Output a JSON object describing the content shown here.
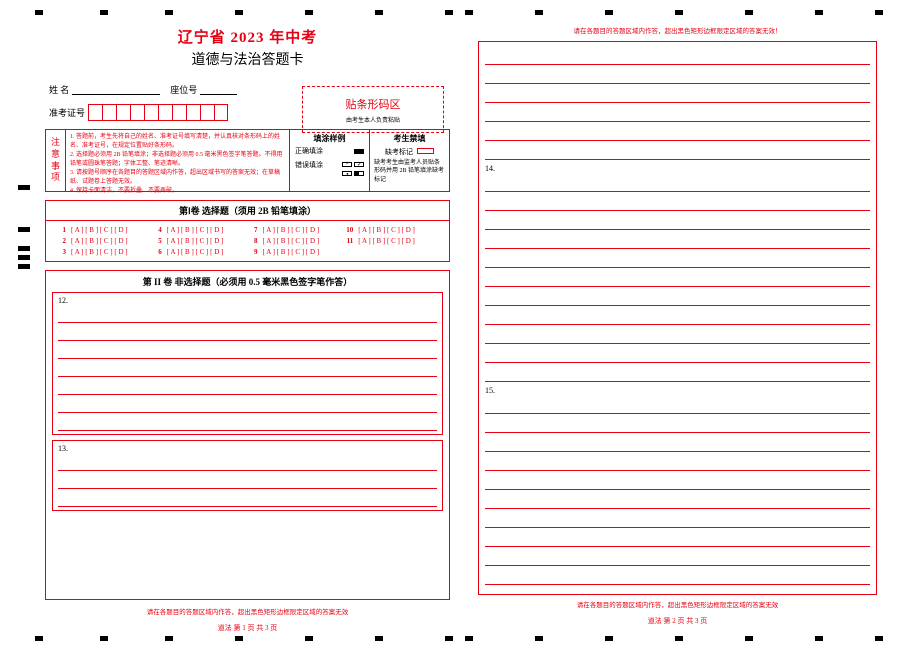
{
  "title_main": "辽宁省 2023 年中考",
  "title_sub": "道德与法治答题卡",
  "name_label": "姓    名",
  "seat_label": "座位号",
  "id_label": "准考证号",
  "barcode_title": "贴条形码区",
  "barcode_note": "由考生本人负责粘贴",
  "notice_label": [
    "注",
    "意",
    "事",
    "项"
  ],
  "notice_lines": [
    "1. 答题前，考生先将自己的姓名、准考证号填写清楚，并认真核对条形码上的姓名、准考证号，在规定位置贴好条形码。",
    "2. 选择题必须用 2B 铅笔填涂；非选择题必须用 0.5 毫米黑色签字笔答题。不得用铅笔或圆珠笔答题；字体工整、笔迹清晰。",
    "3. 请按题号顺序在各题目的答题区域内作答，超出区域书写的答案无效；在草稿纸、试题卷上答题无效。",
    "4. 保持卡面清洁，不要折叠、不要弄破。"
  ],
  "fill_title": "填涂样例",
  "fill_correct": "正确填涂",
  "fill_wrong": "错误填涂",
  "forbid_title": "考生禁填",
  "absent_label": "缺考标记",
  "forbid_text": "缺考考生由监考人员贴条形码并用 2B 铅笔填涂缺考标记",
  "mc_header": "第Ⅰ卷 选择题（须用 2B 铅笔填涂）",
  "mc_bubbles_pattern": "[ A ] [ B ] [ C ] [ D ]",
  "mc_count": 11,
  "free_header": "第 II 卷 非选择题（必须用 0.5 毫米黑色签字笔作答）",
  "page1_questions": [
    {
      "num": "12.",
      "lines": 7
    },
    {
      "num": "13.",
      "lines": 3
    }
  ],
  "page2_questions": [
    {
      "num": "",
      "lines": 6
    },
    {
      "num": "14.",
      "lines": 11
    },
    {
      "num": "15.",
      "lines": 10
    }
  ],
  "footer_warn_p1_top": "请在各题目的答题区域内作答，超出黑色矩形边框限定区域的答案无效",
  "footer_warn_p2_top": "请在各题目的答题区域内作答，超出黑色矩形边框限定区域的答案无效！",
  "footer_warn_p2_bottom": "请在各题目的答题区域内作答，超出黑色矩形边框限定区域的答案无效",
  "page1_footer": "道法    第 1 页  共 3 页",
  "page2_footer": "道法    第 2 页  共 3 页",
  "colors": {
    "primary": "#e60012",
    "black": "#000000",
    "bg": "#ffffff"
  }
}
